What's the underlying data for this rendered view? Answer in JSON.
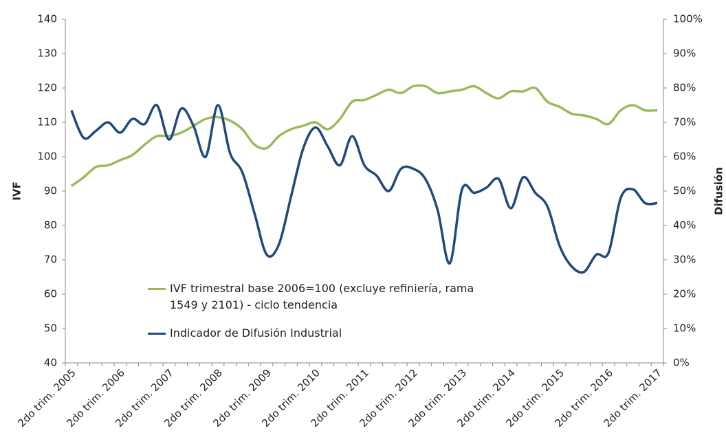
{
  "chart_data": {
    "type": "line",
    "categories": [
      "2do trim. 2005",
      null,
      null,
      null,
      "2do trim. 2006",
      null,
      null,
      null,
      "2do trim. 2007",
      null,
      null,
      null,
      "2do trim. 2008",
      null,
      null,
      null,
      "2do trim. 2009",
      null,
      null,
      null,
      "2do trim. 2010",
      null,
      null,
      null,
      "2do trim. 2011",
      null,
      null,
      null,
      "2do trim. 2012",
      null,
      null,
      null,
      "2do trim. 2013",
      null,
      null,
      null,
      "2do trim. 2014",
      null,
      null,
      null,
      "2do trim. 2015",
      null,
      null,
      null,
      "2do trim. 2016",
      null,
      null,
      null,
      "2do trim. 2017"
    ],
    "series": [
      {
        "name": "IVF trimestral base 2006=100 (excluye refiniería, rama 1549 y 2101) - ciclo tendencia",
        "color": "#9bbb59",
        "values": [
          91.5,
          94,
          97,
          97.5,
          99,
          100.5,
          103.5,
          106,
          106,
          107,
          109,
          111,
          111.5,
          110.5,
          108,
          103.5,
          102.5,
          106,
          108,
          109,
          110,
          108,
          111,
          116,
          116.5,
          118,
          119.5,
          118.5,
          120.5,
          120.5,
          118.5,
          119,
          119.5,
          120.5,
          118.5,
          117,
          119,
          119,
          120,
          116,
          114.5,
          112.5,
          112,
          111,
          109.5,
          113.5,
          115,
          113.5,
          113.5
        ]
      },
      {
        "name": "Indicador de Difusión Industrial",
        "color": "#1f497d",
        "axis": "y2",
        "values": [
          73.5,
          65.5,
          67.5,
          70,
          67,
          71,
          69.5,
          75,
          65,
          74,
          69,
          60,
          75,
          61,
          55.5,
          43.5,
          31.5,
          34.5,
          48.5,
          62.5,
          68.5,
          63,
          57.5,
          66,
          57.5,
          54.5,
          50,
          56.5,
          56.5,
          53.5,
          44.5,
          29,
          50.5,
          49.5,
          51,
          53.5,
          45,
          54,
          49.5,
          45.5,
          34,
          28,
          26.5,
          31.5,
          32,
          48,
          50.5,
          46.5,
          46.5
        ]
      }
    ],
    "ylabel": "IVF",
    "y2label": "Difusión",
    "ylim": [
      40,
      140
    ],
    "yticks": [
      40,
      50,
      60,
      70,
      80,
      90,
      100,
      110,
      120,
      130,
      140
    ],
    "y2lim": [
      0,
      100
    ],
    "y2ticks": [
      {
        "value": 0,
        "label": "0%"
      },
      {
        "value": 10,
        "label": "10%"
      },
      {
        "value": 20,
        "label": "20%"
      },
      {
        "value": 30,
        "label": "30%"
      },
      {
        "value": 40,
        "label": "40%"
      },
      {
        "value": 50,
        "label": "50%"
      },
      {
        "value": 60,
        "label": "60%"
      },
      {
        "value": 70,
        "label": "70%"
      },
      {
        "value": 80,
        "label": "80%"
      },
      {
        "value": 90,
        "label": "90%"
      },
      {
        "value": 100,
        "label": "100%"
      }
    ]
  }
}
